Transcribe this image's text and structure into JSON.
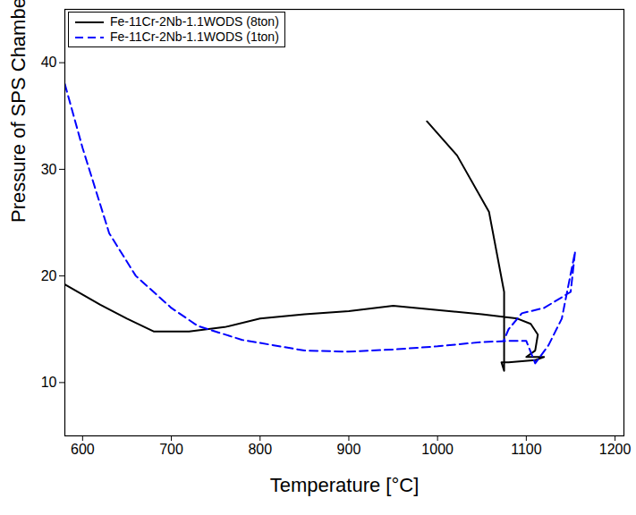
{
  "chart_data": {
    "type": "line",
    "x_label": "Temperature [°C]",
    "y_label": "Pressure of SPS Chamber [Pa]",
    "xlim": [
      580,
      1210
    ],
    "xticks": [
      600,
      700,
      800,
      900,
      1000,
      1100,
      1200
    ],
    "ylim": [
      5,
      45
    ],
    "yticks": [
      10,
      20,
      30,
      40
    ],
    "grid": false,
    "legend": "upper left",
    "series": [
      {
        "name": "Fe-11Cr-2Nb-1.1WODS (8ton)",
        "color": "#000000",
        "line_style": "solid",
        "x": [
          580,
          620,
          650,
          680,
          720,
          760,
          800,
          850,
          900,
          950,
          1000,
          1050,
          1090,
          1105,
          1113,
          1110,
          1100,
          1120,
          1110,
          1080,
          1072,
          1075,
          1075,
          1075,
          1058,
          1022,
          988
        ],
        "values": [
          19.2,
          17.3,
          16.0,
          14.8,
          14.8,
          15.2,
          16.0,
          16.4,
          16.7,
          17.2,
          16.8,
          16.4,
          16.0,
          15.5,
          14.5,
          13.0,
          12.4,
          12.4,
          12.1,
          11.9,
          11.9,
          11.1,
          12.0,
          18.5,
          26.0,
          31.3,
          34.5
        ]
      },
      {
        "name": "Fe-11Cr-2Nb-1.1WODS (1ton)",
        "color": "#0000ff",
        "line_style": "dashed",
        "x": [
          580,
          600,
          630,
          660,
          700,
          730,
          780,
          850,
          900,
          950,
          1000,
          1050,
          1080,
          1100,
          1110,
          1125,
          1140,
          1155,
          1150,
          1120,
          1095,
          1080,
          1075
        ],
        "values": [
          38.0,
          32.0,
          24.0,
          20.0,
          17.0,
          15.3,
          14.0,
          13.0,
          12.9,
          13.1,
          13.4,
          13.8,
          13.9,
          13.9,
          11.8,
          13.5,
          16.0,
          22.3,
          18.5,
          17.0,
          16.5,
          15.0,
          14.0
        ]
      }
    ]
  }
}
